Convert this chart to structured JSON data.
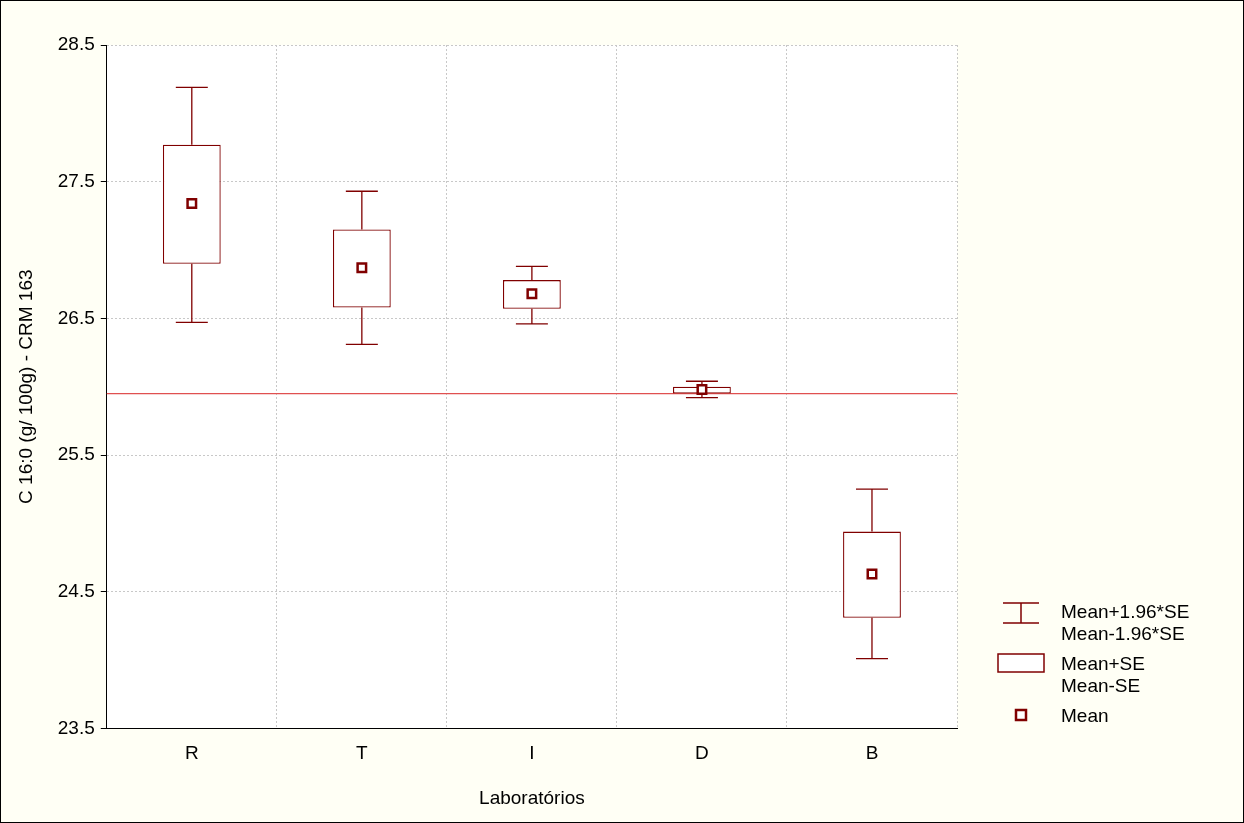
{
  "chart_data": {
    "type": "box",
    "xlabel": "Laboratórios",
    "ylabel": "C 16:0 (g/ 100g) - CRM 163",
    "categories": [
      "R",
      "T",
      "I",
      "D",
      "B"
    ],
    "boxes": [
      {
        "low": 26.47,
        "q1": 26.9,
        "q3": 27.77,
        "high": 28.19,
        "mean": 27.34
      },
      {
        "low": 26.31,
        "q1": 26.58,
        "q3": 27.15,
        "high": 27.43,
        "mean": 26.87
      },
      {
        "low": 26.46,
        "q1": 26.57,
        "q3": 26.78,
        "high": 26.88,
        "mean": 26.68
      },
      {
        "low": 25.92,
        "q1": 25.95,
        "q3": 26.0,
        "high": 26.04,
        "mean": 25.98
      },
      {
        "low": 24.01,
        "q1": 24.31,
        "q3": 24.94,
        "high": 25.25,
        "mean": 24.63
      }
    ],
    "color": "#800000",
    "ylim": [
      23.5,
      28.5
    ],
    "yticks": [
      23.5,
      24.5,
      25.5,
      26.5,
      27.5,
      28.5
    ],
    "grid": true,
    "marker": "square",
    "ref_lines": [
      {
        "axis": "y",
        "value": 25.95,
        "color": "#e05050"
      }
    ],
    "annotations": [
      "Mean+1.96*SE",
      "Mean-1.96*SE",
      "Mean+SE",
      "Mean-SE",
      "Mean"
    ]
  }
}
